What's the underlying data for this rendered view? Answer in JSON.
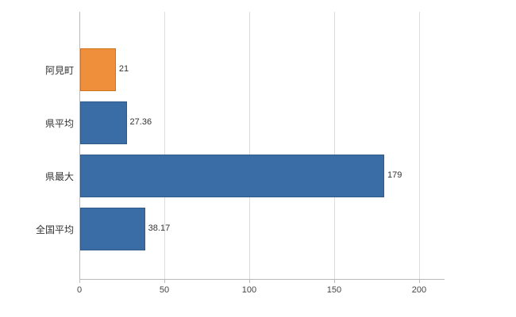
{
  "chart_data": {
    "type": "bar",
    "orientation": "horizontal",
    "title": "",
    "xlabel": "",
    "ylabel": "",
    "categories": [
      "阿見町",
      "県平均",
      "県最大",
      "全国平均"
    ],
    "values": [
      21,
      27.36,
      179,
      38.17
    ],
    "value_labels": [
      "21",
      "27.36",
      "179",
      "38.17"
    ],
    "bar_colors": [
      "#ef8f3c",
      "#3a6ca5",
      "#3a6ca5",
      "#3a6ca5"
    ],
    "bar_border_colors": [
      "#cf7320",
      "#2f5a8a",
      "#2f5a8a",
      "#2f5a8a"
    ],
    "xlim": [
      0,
      215
    ],
    "xticks": [
      0,
      50,
      100,
      150,
      200
    ],
    "grid": true,
    "legend": "none",
    "background": "#ffffff"
  },
  "colors": {
    "grid": "#dcdcdc",
    "axis": "#b9b9b9",
    "text": "#333333",
    "background": "#ffffff"
  }
}
